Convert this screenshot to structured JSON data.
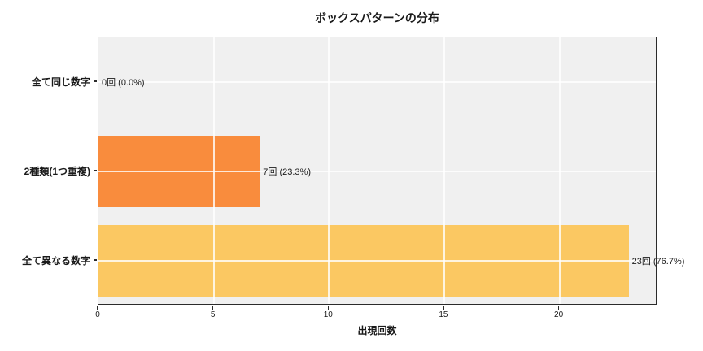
{
  "title": "ボックスパターンの分布",
  "chart_data": {
    "type": "bar",
    "orientation": "horizontal",
    "title": "ボックスパターンの分布",
    "xlabel": "出現回数",
    "ylabel": "",
    "categories": [
      "全て同じ数字",
      "2種類(1つ重複)",
      "全て異なる数字"
    ],
    "values": [
      0,
      7,
      23
    ],
    "annotations": [
      "0回 (0.0%)",
      "7回 (23.3%)",
      "23回 (76.7%)"
    ],
    "bar_colors": [
      null,
      "#f98c3d",
      "#fbc862"
    ],
    "xticks": [
      0,
      5,
      10,
      15,
      20
    ],
    "xtick_labels": [
      "0",
      "5",
      "10",
      "15",
      "20"
    ],
    "xlim": [
      0,
      24.25
    ],
    "grid": true,
    "legend": null,
    "plot_bg": "#f0f0f0",
    "grid_color": "#ffffff",
    "spine_color": "#2b2b2b",
    "text_color": "#1a1a1a"
  }
}
